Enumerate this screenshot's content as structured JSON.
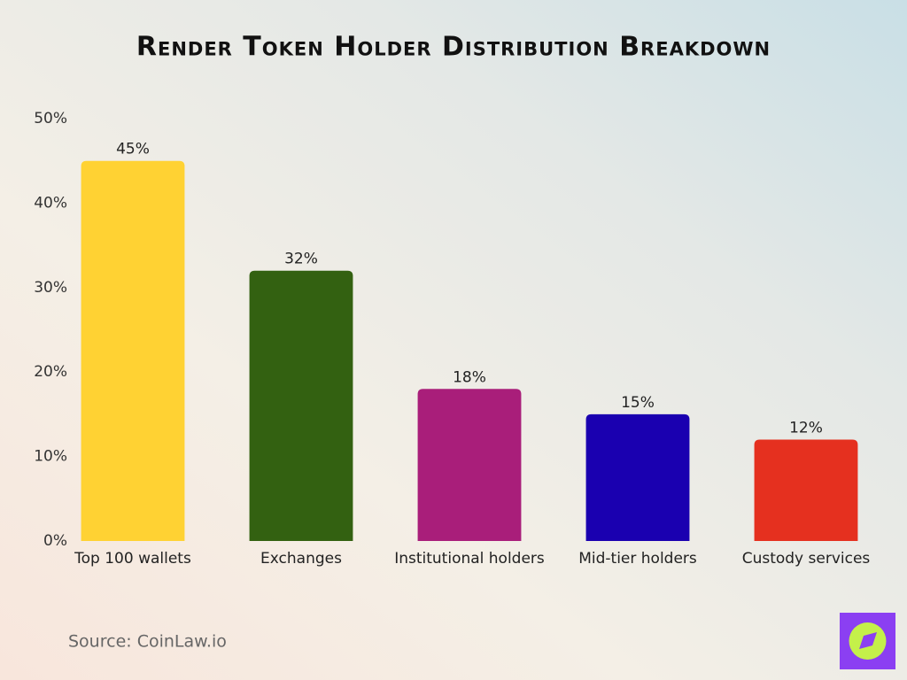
{
  "chart_data": {
    "type": "bar",
    "title": "Render Token Holder Distribution Breakdown",
    "categories": [
      "Top 100 wallets",
      "Exchanges",
      "Institutional holders",
      "Mid-tier holders",
      "Custody services"
    ],
    "values": [
      45,
      32,
      18,
      15,
      12
    ],
    "value_labels": [
      "45%",
      "32%",
      "18%",
      "15%",
      "12%"
    ],
    "colors": [
      "#FFD233",
      "#336111",
      "#A91E7A",
      "#1A00B0",
      "#E5301F"
    ],
    "ylim": [
      0,
      50
    ],
    "yticks": [
      {
        "value": 0,
        "label": "0%"
      },
      {
        "value": 10,
        "label": "10%"
      },
      {
        "value": 20,
        "label": "20%"
      },
      {
        "value": 30,
        "label": "30%"
      },
      {
        "value": 40,
        "label": "40%"
      },
      {
        "value": 50,
        "label": "50%"
      }
    ],
    "grid": false,
    "source": "Source: CoinLaw.io"
  }
}
